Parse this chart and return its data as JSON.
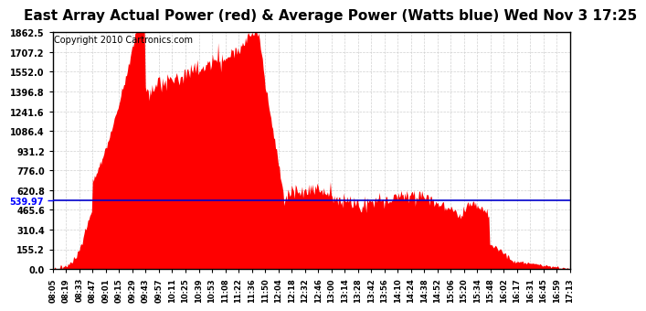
{
  "title": "East Array Actual Power (red) & Average Power (Watts blue) Wed Nov 3 17:25",
  "copyright": "Copyright 2010 Cartronics.com",
  "average_power": 539.97,
  "y_max": 1862.5,
  "y_min": 0.0,
  "y_ticks": [
    0.0,
    155.2,
    310.4,
    465.6,
    620.8,
    776.0,
    931.2,
    1086.4,
    1241.6,
    1396.8,
    1552.0,
    1707.2,
    1862.5
  ],
  "x_labels": [
    "08:05",
    "08:19",
    "08:33",
    "08:47",
    "09:01",
    "09:15",
    "09:29",
    "09:43",
    "09:57",
    "10:11",
    "10:25",
    "10:39",
    "10:53",
    "11:08",
    "11:22",
    "11:36",
    "11:50",
    "12:04",
    "12:18",
    "12:32",
    "12:46",
    "13:00",
    "13:14",
    "13:28",
    "13:42",
    "13:56",
    "14:10",
    "14:24",
    "14:38",
    "14:52",
    "15:06",
    "15:20",
    "15:34",
    "15:48",
    "16:02",
    "16:17",
    "16:31",
    "16:45",
    "16:59",
    "17:13"
  ],
  "bg_color": "#ffffff",
  "fill_color": "#ff0000",
  "line_color": "#0000cc",
  "grid_color": "#cccccc",
  "title_fontsize": 11,
  "copyright_fontsize": 7
}
